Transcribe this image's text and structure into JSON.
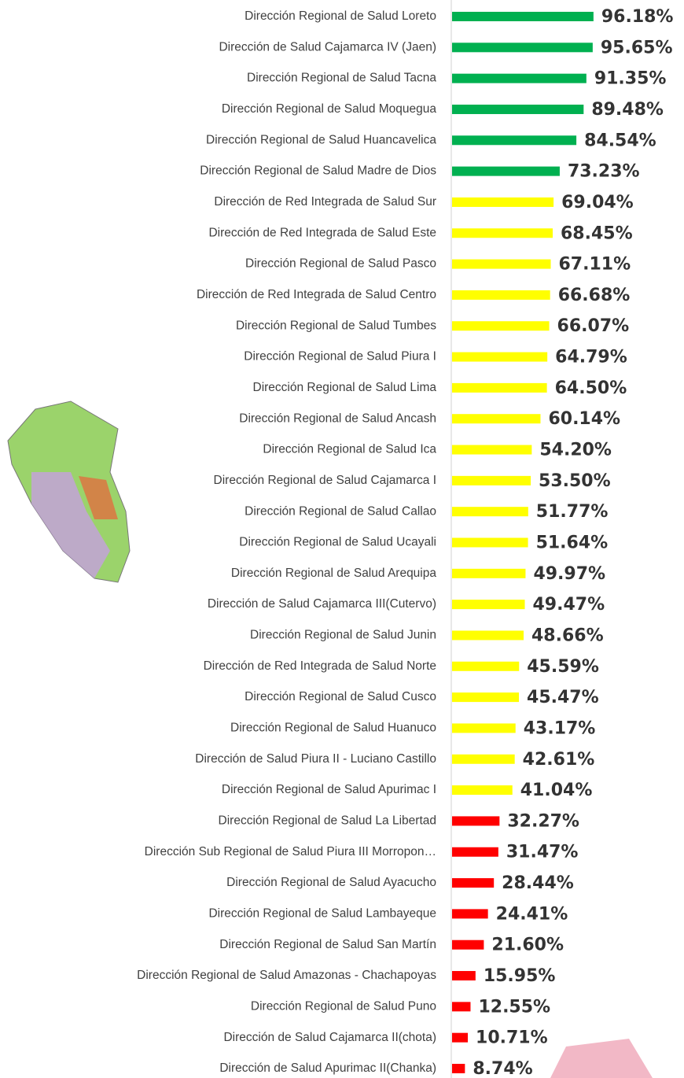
{
  "chart_data": {
    "type": "hbar",
    "categories": [
      "Dirección Regional de Salud Loreto",
      "Dirección de Salud Cajamarca IV (Jaen)",
      "Dirección Regional de Salud Tacna",
      "Dirección Regional de Salud Moquegua",
      "Dirección Regional de Salud Huancavelica",
      "Dirección Regional de Salud Madre de Dios",
      "Dirección de Red Integrada de Salud Sur",
      "Dirección de Red Integrada de Salud Este",
      "Dirección Regional de Salud Pasco",
      "Dirección de Red Integrada de Salud Centro",
      "Dirección Regional de Salud Tumbes",
      "Dirección Regional de Salud Piura I",
      "Dirección Regional de Salud Lima",
      "Dirección Regional de Salud Ancash",
      "Dirección Regional de Salud Ica",
      "Dirección Regional de Salud Cajamarca I",
      "Dirección Regional de Salud Callao",
      "Dirección Regional de Salud Ucayali",
      "Dirección Regional de Salud Arequipa",
      "Dirección de Salud Cajamarca III(Cutervo)",
      "Dirección Regional de Salud Junin",
      "Dirección de Red Integrada de Salud Norte",
      "Dirección Regional de Salud Cusco",
      "Dirección Regional de Salud Huanuco",
      "Dirección de Salud Piura II - Luciano Castillo",
      "Dirección Regional de Salud Apurimac I",
      "Dirección Regional de Salud La Libertad",
      "Dirección Sub Regional de Salud Piura III Morropon…",
      "Dirección Regional de Salud Ayacucho",
      "Dirección Regional de Salud Lambayeque",
      "Dirección Regional de Salud San Martín",
      "Dirección Regional de Salud Amazonas - Chachapoyas",
      "Dirección Regional de Salud Puno",
      "Dirección de Salud Cajamarca II(chota)",
      "Dirección de Salud Apurimac II(Chanka)"
    ],
    "values": [
      96.18,
      95.65,
      91.35,
      89.48,
      84.54,
      73.23,
      69.04,
      68.45,
      67.11,
      66.68,
      66.07,
      64.79,
      64.5,
      60.14,
      54.2,
      53.5,
      51.77,
      51.64,
      49.97,
      49.47,
      48.66,
      45.59,
      45.47,
      43.17,
      42.61,
      41.04,
      32.27,
      31.47,
      28.44,
      24.41,
      21.6,
      15.95,
      12.55,
      10.71,
      8.74
    ],
    "value_labels": [
      "96.18%",
      "95.65%",
      "91.35%",
      "89.48%",
      "84.54%",
      "73.23%",
      "69.04%",
      "68.45%",
      "67.11%",
      "66.68%",
      "66.07%",
      "64.79%",
      "64.50%",
      "60.14%",
      "54.20%",
      "53.50%",
      "51.77%",
      "51.64%",
      "49.97%",
      "49.47%",
      "48.66%",
      "45.59%",
      "45.47%",
      "43.17%",
      "42.61%",
      "41.04%",
      "32.27%",
      "31.47%",
      "28.44%",
      "24.41%",
      "21.60%",
      "15.95%",
      "12.55%",
      "10.71%",
      "8.74%"
    ],
    "colors": [
      "#00b050",
      "#00b050",
      "#00b050",
      "#00b050",
      "#00b050",
      "#00b050",
      "#ffff00",
      "#ffff00",
      "#ffff00",
      "#ffff00",
      "#ffff00",
      "#ffff00",
      "#ffff00",
      "#ffff00",
      "#ffff00",
      "#ffff00",
      "#ffff00",
      "#ffff00",
      "#ffff00",
      "#ffff00",
      "#ffff00",
      "#ffff00",
      "#ffff00",
      "#ffff00",
      "#ffff00",
      "#ffff00",
      "#ff0000",
      "#ff0000",
      "#ff0000",
      "#ff0000",
      "#ff0000",
      "#ff0000",
      "#ff0000",
      "#ff0000",
      "#ff0000"
    ],
    "xlim": [
      0,
      100
    ]
  }
}
